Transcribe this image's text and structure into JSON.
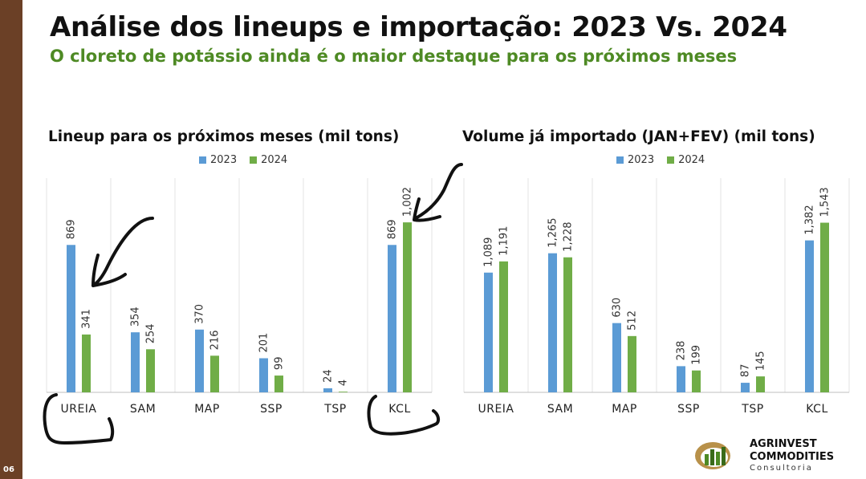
{
  "slide": {
    "title": "Análise dos lineups e importação: 2023 Vs. 2024",
    "subtitle": "O cloreto de potássio ainda é o maior destaque para os próximos meses",
    "page_number": "06",
    "brand_color": "#6b4026",
    "subtitle_color": "#4e8a24"
  },
  "logo": {
    "line1": "AGRINVEST",
    "line2": "COMMODITIES",
    "line3": "Consultoria"
  },
  "chart_data": [
    {
      "type": "bar",
      "title": "Lineup para os próximos meses (mil tons)",
      "categories": [
        "UREIA",
        "SAM",
        "MAP",
        "SSP",
        "TSP",
        "KCL"
      ],
      "series": [
        {
          "name": "2023",
          "color": "#5b9bd5",
          "values": [
            869,
            354,
            370,
            201,
            24,
            869
          ],
          "labels": [
            "869",
            "354",
            "370",
            "201",
            "24",
            "869"
          ]
        },
        {
          "name": "2024",
          "color": "#70ad47",
          "values": [
            341,
            254,
            216,
            99,
            4,
            1002
          ],
          "labels": [
            "341",
            "254",
            "216",
            "99",
            "4",
            "1,002"
          ]
        }
      ],
      "ylim": [
        0,
        1050
      ],
      "grid": "vertical separators",
      "legend": "top-center"
    },
    {
      "type": "bar",
      "title": "Volume já importado (JAN+FEV) (mil tons)",
      "categories": [
        "UREIA",
        "SAM",
        "MAP",
        "SSP",
        "TSP",
        "KCL"
      ],
      "series": [
        {
          "name": "2023",
          "color": "#5b9bd5",
          "values": [
            1089,
            1265,
            630,
            238,
            87,
            1382
          ],
          "labels": [
            "1,089",
            "1,265",
            "630",
            "238",
            "87",
            "1,382"
          ]
        },
        {
          "name": "2024",
          "color": "#70ad47",
          "values": [
            1191,
            1228,
            512,
            199,
            145,
            1543
          ],
          "labels": [
            "1,191",
            "1,228",
            "512",
            "199",
            "145",
            "1,543"
          ]
        }
      ],
      "ylim": [
        0,
        1620
      ],
      "grid": "vertical separators",
      "legend": "top-center"
    }
  ]
}
